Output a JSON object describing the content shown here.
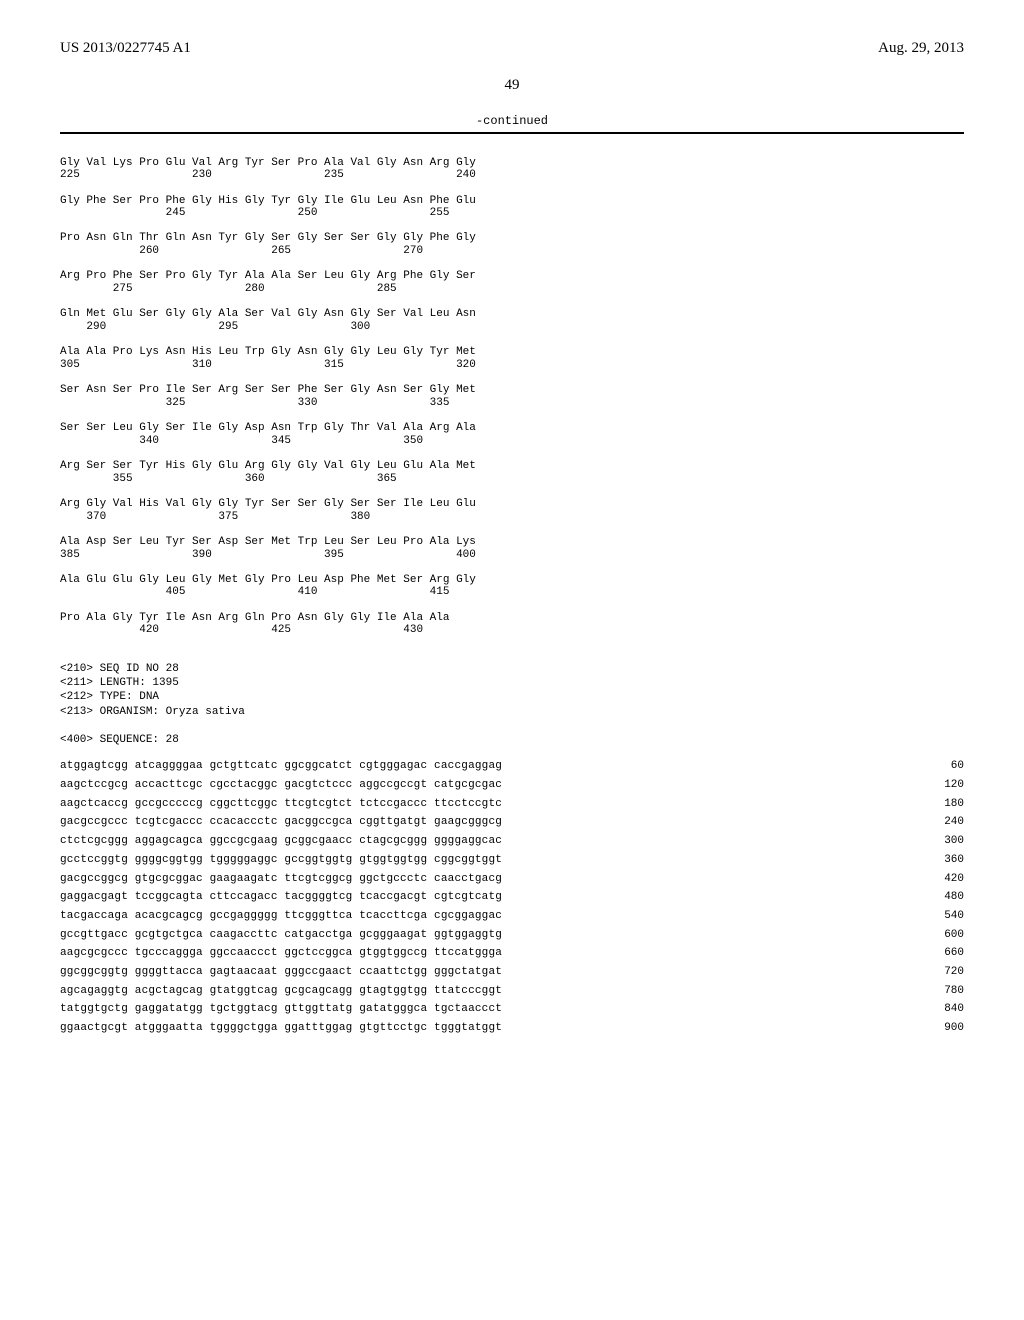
{
  "header": {
    "left": "US 2013/0227745 A1",
    "right": "Aug. 29, 2013"
  },
  "page_number": "49",
  "continued_label": "-continued",
  "protein_rows": [
    {
      "seq": "Gly Val Lys Pro Glu Val Arg Tyr Ser Pro Ala Val Gly Asn Arg Gly",
      "nums": "225                 230                 235                 240"
    },
    {
      "seq": "Gly Phe Ser Pro Phe Gly His Gly Tyr Gly Ile Glu Leu Asn Phe Glu",
      "nums": "                245                 250                 255"
    },
    {
      "seq": "Pro Asn Gln Thr Gln Asn Tyr Gly Ser Gly Ser Ser Gly Gly Phe Gly",
      "nums": "            260                 265                 270"
    },
    {
      "seq": "Arg Pro Phe Ser Pro Gly Tyr Ala Ala Ser Leu Gly Arg Phe Gly Ser",
      "nums": "        275                 280                 285"
    },
    {
      "seq": "Gln Met Glu Ser Gly Gly Ala Ser Val Gly Asn Gly Ser Val Leu Asn",
      "nums": "    290                 295                 300"
    },
    {
      "seq": "Ala Ala Pro Lys Asn His Leu Trp Gly Asn Gly Gly Leu Gly Tyr Met",
      "nums": "305                 310                 315                 320"
    },
    {
      "seq": "Ser Asn Ser Pro Ile Ser Arg Ser Ser Phe Ser Gly Asn Ser Gly Met",
      "nums": "                325                 330                 335"
    },
    {
      "seq": "Ser Ser Leu Gly Ser Ile Gly Asp Asn Trp Gly Thr Val Ala Arg Ala",
      "nums": "            340                 345                 350"
    },
    {
      "seq": "Arg Ser Ser Tyr His Gly Glu Arg Gly Gly Val Gly Leu Glu Ala Met",
      "nums": "        355                 360                 365"
    },
    {
      "seq": "Arg Gly Val His Val Gly Gly Tyr Ser Ser Gly Ser Ser Ile Leu Glu",
      "nums": "    370                 375                 380"
    },
    {
      "seq": "Ala Asp Ser Leu Tyr Ser Asp Ser Met Trp Leu Ser Leu Pro Ala Lys",
      "nums": "385                 390                 395                 400"
    },
    {
      "seq": "Ala Glu Glu Gly Leu Gly Met Gly Pro Leu Asp Phe Met Ser Arg Gly",
      "nums": "                405                 410                 415"
    },
    {
      "seq": "Pro Ala Gly Tyr Ile Asn Arg Gln Pro Asn Gly Gly Ile Ala Ala",
      "nums": "            420                 425                 430"
    }
  ],
  "meta": {
    "line1": "<210> SEQ ID NO 28",
    "line2": "<211> LENGTH: 1395",
    "line3": "<212> TYPE: DNA",
    "line4": "<213> ORGANISM: Oryza sativa",
    "line5": "<400> SEQUENCE: 28"
  },
  "dna_rows": [
    {
      "seq": "atggagtcgg atcaggggaa gctgttcatc ggcggcatct cgtgggagac caccgaggag",
      "num": "60"
    },
    {
      "seq": "aagctccgcg accacttcgc cgcctacggc gacgtctccc aggccgccgt catgcgcgac",
      "num": "120"
    },
    {
      "seq": "aagctcaccg gccgcccccg cggcttcggc ttcgtcgtct tctccgaccc ttcctccgtc",
      "num": "180"
    },
    {
      "seq": "gacgccgccc tcgtcgaccc ccacaccctc gacggccgca cggttgatgt gaagcgggcg",
      "num": "240"
    },
    {
      "seq": "ctctcgcggg aggagcagca ggccgcgaag gcggcgaacc ctagcgcggg ggggaggcac",
      "num": "300"
    },
    {
      "seq": "gcctccggtg ggggcggtgg tgggggaggc gccggtggtg gtggtggtgg cggcggtggt",
      "num": "360"
    },
    {
      "seq": "gacgccggcg gtgcgcggac gaagaagatc ttcgtcggcg ggctgccctc caacctgacg",
      "num": "420"
    },
    {
      "seq": "gaggacgagt tccggcagta cttccagacc tacggggtcg tcaccgacgt cgtcgtcatg",
      "num": "480"
    },
    {
      "seq": "tacgaccaga acacgcagcg gccgaggggg ttcgggttca tcaccttcga cgcggaggac",
      "num": "540"
    },
    {
      "seq": "gccgttgacc gcgtgctgca caagaccttc catgacctga gcgggaagat ggtggaggtg",
      "num": "600"
    },
    {
      "seq": "aagcgcgccc tgcccaggga ggccaaccct ggctccggca gtggtggccg ttccatggga",
      "num": "660"
    },
    {
      "seq": "ggcggcggtg ggggttacca gagtaacaat gggccgaact ccaattctgg gggctatgat",
      "num": "720"
    },
    {
      "seq": "agcagaggtg acgctagcag gtatggtcag gcgcagcagg gtagtggtgg ttatcccggt",
      "num": "780"
    },
    {
      "seq": "tatggtgctg gaggatatgg tgctggtacg gttggttatg gatatgggca tgctaaccct",
      "num": "840"
    },
    {
      "seq": "ggaactgcgt atgggaatta tggggctgga ggatttggag gtgttcctgc tgggtatggt",
      "num": "900"
    }
  ]
}
